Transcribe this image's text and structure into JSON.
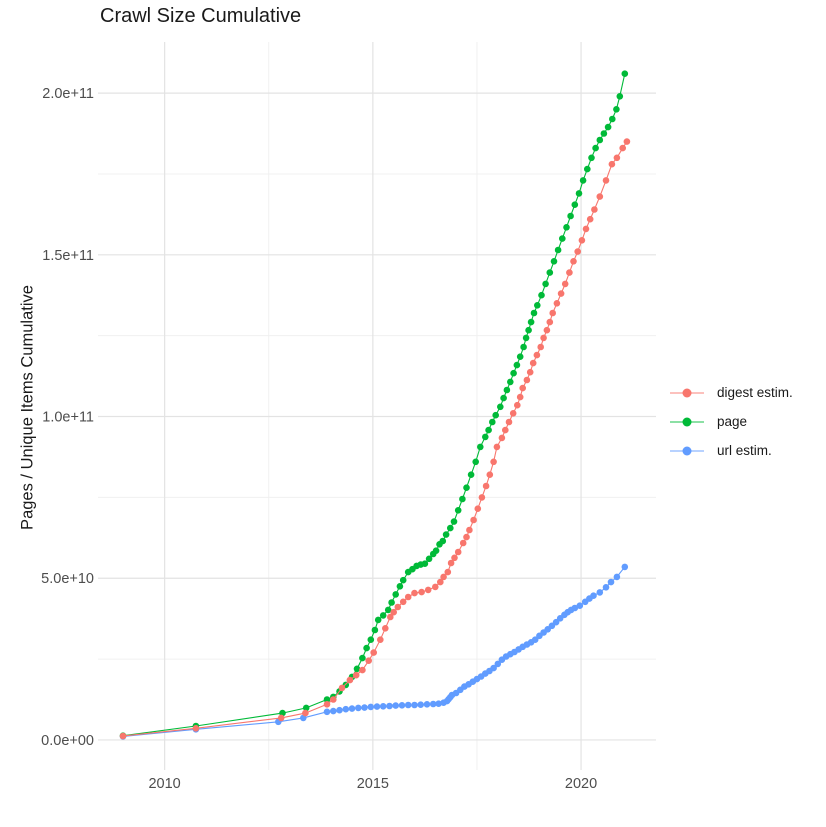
{
  "chart": {
    "title": "Crawl Size Cumulative",
    "ylabel": "Pages / Unique Items Cumulative"
  },
  "chart_data": {
    "type": "line",
    "title": "Crawl Size Cumulative",
    "xlabel": "",
    "ylabel": "Pages / Unique Items Cumulative",
    "grid": true,
    "legend_position": "right",
    "xlim": [
      2008.4,
      2021.8
    ],
    "ylim": [
      -9300000000.0,
      215800000000.0
    ],
    "x_ticks": {
      "values": [
        2010,
        2015,
        2020
      ],
      "labels": [
        "2010",
        "2015",
        "2020"
      ]
    },
    "x_minor_ticks": [
      2012.5,
      2017.5
    ],
    "y_ticks": {
      "values": [
        0,
        50000000000.0,
        100000000000.0,
        150000000000.0,
        200000000000.0
      ],
      "labels": [
        "0.0e+00",
        "5.0e+10",
        "1.0e+11",
        "1.5e+11",
        "2.0e+11"
      ]
    },
    "y_minor_ticks": [
      25000000000.0,
      75000000000.0,
      125000000000.0,
      175000000000.0
    ],
    "draw_order": [
      2,
      1,
      0
    ],
    "series": [
      {
        "name": "digest estim.",
        "color": "#F8766D",
        "points": [
          [
            2009.0,
            1200000000.0
          ],
          [
            2010.75,
            3600000000.0
          ],
          [
            2012.8,
            6800000000.0
          ],
          [
            2013.38,
            8300000000.0
          ],
          [
            2013.9,
            11000000000.0
          ],
          [
            2014.05,
            12500000000.0
          ],
          [
            2014.26,
            16100000000.0
          ],
          [
            2014.45,
            18500000000.0
          ],
          [
            2014.6,
            20000000000.0
          ],
          [
            2014.75,
            21600000000.0
          ],
          [
            2014.9,
            24500000000.0
          ],
          [
            2015.02,
            27000000000.0
          ],
          [
            2015.18,
            31000000000.0
          ],
          [
            2015.3,
            34500000000.0
          ],
          [
            2015.42,
            38000000000.0
          ],
          [
            2015.5,
            39500000000.0
          ],
          [
            2015.6,
            41100000000.0
          ],
          [
            2015.73,
            42700000000.0
          ],
          [
            2015.85,
            44200000000.0
          ],
          [
            2016.0,
            45400000000.0
          ],
          [
            2016.17,
            45700000000.0
          ],
          [
            2016.33,
            46400000000.0
          ],
          [
            2016.5,
            47300000000.0
          ],
          [
            2016.62,
            48800000000.0
          ],
          [
            2016.7,
            50400000000.0
          ],
          [
            2016.8,
            51900000000.0
          ],
          [
            2016.88,
            54700000000.0
          ],
          [
            2016.96,
            56300000000.0
          ],
          [
            2017.05,
            58100000000.0
          ],
          [
            2017.17,
            60900000000.0
          ],
          [
            2017.25,
            62700000000.0
          ],
          [
            2017.32,
            64900000000.0
          ],
          [
            2017.42,
            68000000000.0
          ],
          [
            2017.52,
            71500000000.0
          ],
          [
            2017.62,
            75000000000.0
          ],
          [
            2017.72,
            78500000000.0
          ],
          [
            2017.81,
            82000000000.0
          ],
          [
            2017.9,
            86000000000.0
          ],
          [
            2017.98,
            90600000000.0
          ],
          [
            2018.1,
            93400000000.0
          ],
          [
            2018.18,
            95800000000.0
          ],
          [
            2018.27,
            98300000000.0
          ],
          [
            2018.37,
            101000000000.0
          ],
          [
            2018.47,
            103500000000.0
          ],
          [
            2018.54,
            106000000000.0
          ],
          [
            2018.6,
            108800000000.0
          ],
          [
            2018.7,
            111300000000.0
          ],
          [
            2018.78,
            113700000000.0
          ],
          [
            2018.85,
            116500000000.0
          ],
          [
            2018.94,
            119000000000.0
          ],
          [
            2019.03,
            121500000000.0
          ],
          [
            2019.1,
            124300000000.0
          ],
          [
            2019.18,
            126700000000.0
          ],
          [
            2019.25,
            129200000000.0
          ],
          [
            2019.32,
            132000000000.0
          ],
          [
            2019.42,
            135000000000.0
          ],
          [
            2019.52,
            138000000000.0
          ],
          [
            2019.62,
            141000000000.0
          ],
          [
            2019.72,
            144500000000.0
          ],
          [
            2019.82,
            148000000000.0
          ],
          [
            2019.92,
            151000000000.0
          ],
          [
            2020.02,
            154500000000.0
          ],
          [
            2020.12,
            158000000000.0
          ],
          [
            2020.22,
            161000000000.0
          ],
          [
            2020.32,
            164000000000.0
          ],
          [
            2020.45,
            168000000000.0
          ],
          [
            2020.6,
            173000000000.0
          ],
          [
            2020.74,
            178000000000.0
          ],
          [
            2020.86,
            180000000000.0
          ],
          [
            2021.0,
            183000000000.0
          ],
          [
            2021.1,
            185000000000.0
          ]
        ]
      },
      {
        "name": "page",
        "color": "#00BA38",
        "points": [
          [
            2009.0,
            1300000000.0
          ],
          [
            2010.75,
            4300000000.0
          ],
          [
            2012.83,
            8300000000.0
          ],
          [
            2013.4,
            9900000000.0
          ],
          [
            2013.9,
            12500000000.0
          ],
          [
            2014.05,
            13300000000.0
          ],
          [
            2014.2,
            15000000000.0
          ],
          [
            2014.35,
            17000000000.0
          ],
          [
            2014.5,
            19500000000.0
          ],
          [
            2014.62,
            22000000000.0
          ],
          [
            2014.75,
            25300000000.0
          ],
          [
            2014.85,
            28400000000.0
          ],
          [
            2014.95,
            31000000000.0
          ],
          [
            2015.05,
            34000000000.0
          ],
          [
            2015.13,
            37100000000.0
          ],
          [
            2015.25,
            38500000000.0
          ],
          [
            2015.37,
            40200000000.0
          ],
          [
            2015.45,
            42500000000.0
          ],
          [
            2015.55,
            45000000000.0
          ],
          [
            2015.65,
            47500000000.0
          ],
          [
            2015.73,
            49400000000.0
          ],
          [
            2015.85,
            51900000000.0
          ],
          [
            2015.95,
            52800000000.0
          ],
          [
            2016.05,
            53800000000.0
          ],
          [
            2016.15,
            54200000000.0
          ],
          [
            2016.25,
            54500000000.0
          ],
          [
            2016.35,
            56000000000.0
          ],
          [
            2016.45,
            57500000000.0
          ],
          [
            2016.52,
            58500000000.0
          ],
          [
            2016.6,
            60500000000.0
          ],
          [
            2016.68,
            61500000000.0
          ],
          [
            2016.76,
            63500000000.0
          ],
          [
            2016.86,
            65500000000.0
          ],
          [
            2016.95,
            67500000000.0
          ],
          [
            2017.05,
            71000000000.0
          ],
          [
            2017.15,
            74500000000.0
          ],
          [
            2017.25,
            78000000000.0
          ],
          [
            2017.36,
            82000000000.0
          ],
          [
            2017.47,
            86000000000.0
          ],
          [
            2017.58,
            90600000000.0
          ],
          [
            2017.7,
            93700000000.0
          ],
          [
            2017.78,
            95800000000.0
          ],
          [
            2017.87,
            98300000000.0
          ],
          [
            2017.95,
            100400000000.0
          ],
          [
            2018.06,
            103000000000.0
          ],
          [
            2018.14,
            105700000000.0
          ],
          [
            2018.22,
            108200000000.0
          ],
          [
            2018.3,
            110700000000.0
          ],
          [
            2018.38,
            113400000000.0
          ],
          [
            2018.46,
            115900000000.0
          ],
          [
            2018.54,
            118500000000.0
          ],
          [
            2018.62,
            121500000000.0
          ],
          [
            2018.68,
            124300000000.0
          ],
          [
            2018.74,
            126700000000.0
          ],
          [
            2018.8,
            129200000000.0
          ],
          [
            2018.87,
            132000000000.0
          ],
          [
            2018.95,
            134400000000.0
          ],
          [
            2019.05,
            137500000000.0
          ],
          [
            2019.15,
            141000000000.0
          ],
          [
            2019.25,
            144500000000.0
          ],
          [
            2019.35,
            148000000000.0
          ],
          [
            2019.45,
            151500000000.0
          ],
          [
            2019.55,
            155000000000.0
          ],
          [
            2019.65,
            158500000000.0
          ],
          [
            2019.75,
            162000000000.0
          ],
          [
            2019.85,
            165500000000.0
          ],
          [
            2019.95,
            169000000000.0
          ],
          [
            2020.05,
            173000000000.0
          ],
          [
            2020.15,
            176500000000.0
          ],
          [
            2020.25,
            180000000000.0
          ],
          [
            2020.35,
            183000000000.0
          ],
          [
            2020.45,
            185500000000.0
          ],
          [
            2020.55,
            187500000000.0
          ],
          [
            2020.65,
            189500000000.0
          ],
          [
            2020.75,
            192000000000.0
          ],
          [
            2020.85,
            195000000000.0
          ],
          [
            2020.93,
            199000000000.0
          ],
          [
            2021.05,
            206000000000.0
          ]
        ]
      },
      {
        "name": "url estim.",
        "color": "#619CFF",
        "points": [
          [
            2009.0,
            1100000000.0
          ],
          [
            2010.75,
            3300000000.0
          ],
          [
            2012.73,
            5600000000.0
          ],
          [
            2013.33,
            6800000000.0
          ],
          [
            2013.9,
            8700000000.0
          ],
          [
            2014.05,
            8900000000.0
          ],
          [
            2014.2,
            9200000000.0
          ],
          [
            2014.35,
            9500000000.0
          ],
          [
            2014.5,
            9700000000.0
          ],
          [
            2014.65,
            9900000000.0
          ],
          [
            2014.8,
            10000000000.0
          ],
          [
            2014.95,
            10200000000.0
          ],
          [
            2015.1,
            10300000000.0
          ],
          [
            2015.25,
            10400000000.0
          ],
          [
            2015.4,
            10500000000.0
          ],
          [
            2015.55,
            10600000000.0
          ],
          [
            2015.7,
            10700000000.0
          ],
          [
            2015.85,
            10800000000.0
          ],
          [
            2016.0,
            10800000000.0
          ],
          [
            2016.15,
            10900000000.0
          ],
          [
            2016.3,
            11000000000.0
          ],
          [
            2016.45,
            11100000000.0
          ],
          [
            2016.58,
            11200000000.0
          ],
          [
            2016.7,
            11500000000.0
          ],
          [
            2016.78,
            12000000000.0
          ],
          [
            2016.82,
            12600000000.0
          ],
          [
            2016.86,
            13200000000.0
          ],
          [
            2016.9,
            13900000000.0
          ],
          [
            2017.0,
            14500000000.0
          ],
          [
            2017.1,
            15500000000.0
          ],
          [
            2017.2,
            16500000000.0
          ],
          [
            2017.3,
            17200000000.0
          ],
          [
            2017.4,
            18000000000.0
          ],
          [
            2017.5,
            18800000000.0
          ],
          [
            2017.6,
            19600000000.0
          ],
          [
            2017.7,
            20500000000.0
          ],
          [
            2017.8,
            21300000000.0
          ],
          [
            2017.9,
            22200000000.0
          ],
          [
            2018.0,
            23500000000.0
          ],
          [
            2018.1,
            24800000000.0
          ],
          [
            2018.2,
            25800000000.0
          ],
          [
            2018.3,
            26500000000.0
          ],
          [
            2018.4,
            27200000000.0
          ],
          [
            2018.5,
            28000000000.0
          ],
          [
            2018.6,
            28800000000.0
          ],
          [
            2018.7,
            29500000000.0
          ],
          [
            2018.8,
            30200000000.0
          ],
          [
            2018.9,
            31000000000.0
          ],
          [
            2019.0,
            32200000000.0
          ],
          [
            2019.1,
            33200000000.0
          ],
          [
            2019.2,
            34200000000.0
          ],
          [
            2019.3,
            35300000000.0
          ],
          [
            2019.4,
            36400000000.0
          ],
          [
            2019.5,
            37600000000.0
          ],
          [
            2019.6,
            38700000000.0
          ],
          [
            2019.68,
            39500000000.0
          ],
          [
            2019.76,
            40200000000.0
          ],
          [
            2019.85,
            40800000000.0
          ],
          [
            2019.97,
            41500000000.0
          ],
          [
            2020.1,
            42700000000.0
          ],
          [
            2020.2,
            43700000000.0
          ],
          [
            2020.3,
            44600000000.0
          ],
          [
            2020.45,
            45600000000.0
          ],
          [
            2020.6,
            47200000000.0
          ],
          [
            2020.72,
            48800000000.0
          ],
          [
            2020.86,
            50400000000.0
          ],
          [
            2021.05,
            53500000000.0
          ]
        ]
      }
    ],
    "style": {
      "major_grid_color": "#e3e3e3",
      "minor_grid_color": "#f0f0f0",
      "tick_label_color": "#4d4d4d",
      "point_radius": 3.3,
      "line_width": 1.1
    }
  }
}
